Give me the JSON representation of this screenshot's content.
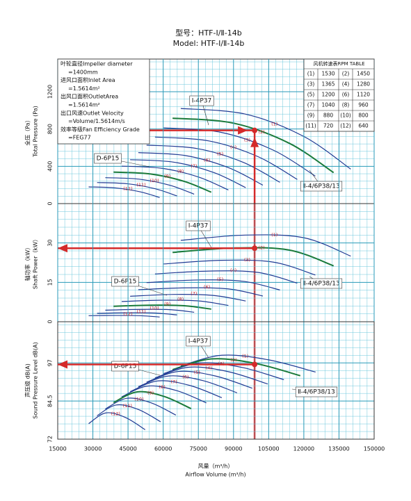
{
  "title": "型号：HTF-Ⅰ/Ⅱ-14b",
  "subtitle": "Model: HTF-Ⅰ/Ⅱ-14b",
  "x_label_cn": "风量（m³/h）",
  "x_label": "Airflow Volume (m³/h)",
  "info_box": [
    "叶轮直径Impeller diameter",
    "=1400mm",
    "进风口面积Inlet Area",
    "=1.5614m²",
    "出风口面积OutletArea",
    "=1.5614m²",
    "出口风速Outlet Velocity",
    "=Volume/1.5614m/s",
    "效率等级Fan Efficiency Grade",
    "=FEG77"
  ],
  "rpm_table": {
    "title": "风机转速表RPM TABLE",
    "rows": [
      [
        "(1)",
        "1530",
        "(2)",
        "1450"
      ],
      [
        "(3)",
        "1365",
        "(4)",
        "1280"
      ],
      [
        "(5)",
        "1200",
        "(6)",
        "1120"
      ],
      [
        "(7)",
        "1040",
        "(8)",
        "960"
      ],
      [
        "(9)",
        "880",
        "(10)",
        "800"
      ],
      [
        "(11)",
        "720",
        "(12)",
        "640"
      ]
    ]
  },
  "chart_data": [
    {
      "type": "line",
      "y_label_cn": "全压（Pa）",
      "y_label": "Total Pressure (Pa)",
      "xlim": [
        15000,
        150000
      ],
      "ylim": [
        0,
        1550
      ],
      "yticks": [
        0,
        400,
        800,
        1200
      ],
      "grid": true,
      "annotations": [
        "Ⅰ-4P37",
        "D-6P15",
        "Ⅱ-4/6P38/13"
      ],
      "operating_point": {
        "x": 99000,
        "y": 785
      },
      "series": [
        {
          "name": "(1)",
          "color": "#1f3a93",
          "x": [
            67500,
            95000,
            120000,
            140000
          ],
          "values": [
            1020,
            960,
            720,
            370
          ]
        },
        {
          "name": "(2)",
          "color": "#1a7a3a",
          "x": [
            64000,
            90100,
            113800,
            132700
          ],
          "values": [
            916,
            862,
            647,
            332
          ]
        },
        {
          "name": "(3)",
          "color": "#1f3a93",
          "x": [
            60200,
            84700,
            107000,
            124900
          ],
          "values": [
            812,
            764,
            573,
            295
          ]
        },
        {
          "name": "(4)",
          "color": "#1f3a93",
          "x": [
            56500,
            79500,
            100400,
            117200
          ],
          "values": [
            714,
            672,
            504,
            259
          ]
        },
        {
          "name": "(5)",
          "color": "#1f3a93",
          "x": [
            52900,
            74500,
            94100,
            109800
          ],
          "values": [
            627,
            590,
            443,
            228
          ]
        },
        {
          "name": "(6)",
          "color": "#1f3a93",
          "x": [
            49400,
            69500,
            87800,
            102500
          ],
          "values": [
            547,
            515,
            386,
            198
          ]
        },
        {
          "name": "(7)",
          "color": "#1f3a93",
          "x": [
            45900,
            64600,
            81600,
            95200
          ],
          "values": [
            471,
            444,
            333,
            171
          ]
        },
        {
          "name": "(8)",
          "color": "#1f3a93",
          "x": [
            42300,
            59600,
            75200,
            87800
          ],
          "values": [
            402,
            378,
            284,
            146
          ]
        },
        {
          "name": "(9)",
          "color": "#1a7a3a",
          "x": [
            38800,
            54600,
            69000,
            80500
          ],
          "values": [
            338,
            318,
            238,
            122
          ]
        },
        {
          "name": "(10)",
          "color": "#1f3a93",
          "x": [
            35300,
            49700,
            62800,
            73200
          ],
          "values": [
            278,
            262,
            197,
            101
          ]
        },
        {
          "name": "(11)",
          "color": "#1f3a93",
          "x": [
            31800,
            44700,
            56500,
            65900
          ],
          "values": [
            226,
            213,
            160,
            82
          ]
        },
        {
          "name": "(12)",
          "color": "#1f3a93",
          "x": [
            28200,
            39700,
            50200,
            58500
          ],
          "values": [
            179,
            168,
            126,
            65
          ]
        }
      ]
    },
    {
      "type": "line",
      "y_label_cn": "轴功率（kW）",
      "y_label": "Shaft Power（kW）",
      "xlim": [
        15000,
        150000
      ],
      "ylim": [
        0,
        45
      ],
      "yticks": [
        0,
        15,
        30
      ],
      "grid": true,
      "annotations": [
        "Ⅰ-4P37",
        "D-6P15",
        "Ⅱ-4/6P38/13"
      ],
      "operating_point": {
        "x": 99000,
        "y": 28
      },
      "series": [
        {
          "name": "(1)",
          "color": "#1f3a93",
          "x": [
            67500,
            95000,
            120000,
            140000
          ],
          "values": [
            31,
            33,
            32,
            25
          ]
        },
        {
          "name": "(2)",
          "color": "#1a7a3a",
          "x": [
            64000,
            90100,
            113800,
            132700
          ],
          "values": [
            26.4,
            28.1,
            27.3,
            21.3
          ]
        },
        {
          "name": "(3)",
          "color": "#1f3a93",
          "x": [
            60200,
            84700,
            107000,
            124900
          ],
          "values": [
            22.0,
            23.4,
            22.7,
            17.8
          ]
        },
        {
          "name": "(4)",
          "color": "#1f3a93",
          "x": [
            56500,
            79500,
            100400,
            117200
          ],
          "values": [
            18.2,
            19.3,
            18.8,
            14.7
          ]
        },
        {
          "name": "(5)",
          "color": "#1f3a93",
          "x": [
            52900,
            74500,
            94100,
            109800
          ],
          "values": [
            14.9,
            15.9,
            15.4,
            12.1
          ]
        },
        {
          "name": "(6)",
          "color": "#1f3a93",
          "x": [
            49400,
            69500,
            87800,
            102500
          ],
          "values": [
            12.2,
            12.9,
            12.5,
            9.8
          ]
        },
        {
          "name": "(7)",
          "color": "#1f3a93",
          "x": [
            45900,
            64600,
            81600,
            95200
          ],
          "values": [
            9.7,
            10.4,
            10.0,
            7.9
          ]
        },
        {
          "name": "(8)",
          "color": "#1f3a93",
          "x": [
            42300,
            59600,
            75200,
            87800
          ],
          "values": [
            7.7,
            8.2,
            7.9,
            6.2
          ]
        },
        {
          "name": "(9)",
          "color": "#1a7a3a",
          "x": [
            38800,
            54600,
            69000,
            80500
          ],
          "values": [
            5.9,
            6.3,
            6.1,
            4.8
          ]
        },
        {
          "name": "(10)",
          "color": "#1f3a93",
          "x": [
            35300,
            49700,
            62800,
            73200
          ],
          "values": [
            4.4,
            4.7,
            4.6,
            3.6
          ]
        },
        {
          "name": "(11)",
          "color": "#1f3a93",
          "x": [
            31800,
            44700,
            56500,
            65900
          ],
          "values": [
            3.2,
            3.4,
            3.3,
            2.6
          ]
        },
        {
          "name": "(12)",
          "color": "#1f3a93",
          "x": [
            28200,
            39700,
            50200,
            58500
          ],
          "values": [
            2.3,
            2.4,
            2.3,
            1.8
          ]
        }
      ]
    },
    {
      "type": "line",
      "y_label_cn": "声压级 dB(A)",
      "y_label": "Sound Pressure Level dB(A)",
      "xlim": [
        15000,
        150000
      ],
      "ylim": [
        72,
        110.5
      ],
      "yticks": [
        72,
        84.5,
        97
      ],
      "grid": true,
      "xticks": [
        15000,
        30000,
        45000,
        60000,
        75000,
        90000,
        105000,
        120000,
        135000,
        150000
      ],
      "annotations": [
        "Ⅰ-4P37",
        "D-6P15",
        "Ⅱ-4/6P38/13"
      ],
      "operating_point": {
        "x": 99000,
        "y": 96.5
      },
      "series": [
        {
          "name": "(1)",
          "color": "#1f3a93",
          "x": [
            67500,
            85000,
            105000,
            125000
          ],
          "values": [
            96,
            99.5,
            98,
            94
          ]
        },
        {
          "name": "(2)",
          "color": "#1a7a3a",
          "x": [
            64000,
            80600,
            99500,
            118500
          ],
          "values": [
            94.8,
            98.3,
            96.8,
            92.8
          ]
        },
        {
          "name": "(3)",
          "color": "#1f3a93",
          "x": [
            60200,
            75800,
            93700,
            111500
          ],
          "values": [
            93.5,
            97,
            95.5,
            91.5
          ]
        },
        {
          "name": "(4)",
          "color": "#1f3a93",
          "x": [
            56500,
            71100,
            87900,
            104600
          ],
          "values": [
            92.1,
            95.6,
            94.1,
            90.1
          ]
        },
        {
          "name": "(5)",
          "color": "#1f3a93",
          "x": [
            52900,
            66600,
            82300,
            98000
          ],
          "values": [
            90.7,
            94.2,
            92.7,
            88.7
          ]
        },
        {
          "name": "(6)",
          "color": "#1f3a93",
          "x": [
            49400,
            62200,
            76900,
            91500
          ],
          "values": [
            89.2,
            92.7,
            91.2,
            87.2
          ]
        },
        {
          "name": "(7)",
          "color": "#1f3a93",
          "x": [
            45900,
            57800,
            71400,
            85000
          ],
          "values": [
            87.6,
            91.1,
            89.6,
            85.6
          ]
        },
        {
          "name": "(8)",
          "color": "#1f3a93",
          "x": [
            42300,
            53300,
            65800,
            78400
          ],
          "values": [
            85.9,
            89.4,
            87.9,
            83.9
          ]
        },
        {
          "name": "(9)",
          "color": "#1a7a3a",
          "x": [
            38800,
            48900,
            60400,
            71900
          ],
          "values": [
            84,
            87.5,
            86,
            82
          ]
        },
        {
          "name": "(10)",
          "color": "#1f3a93",
          "x": [
            35300,
            44500,
            54900,
            65400
          ],
          "values": [
            81.9,
            85.4,
            83.9,
            79.9
          ]
        },
        {
          "name": "(11)",
          "color": "#1f3a93",
          "x": [
            31800,
            40000,
            49500,
            58900
          ],
          "values": [
            79.7,
            83.2,
            81.7,
            77.7
          ]
        },
        {
          "name": "(12)",
          "color": "#1f3a93",
          "x": [
            28200,
            35500,
            43900,
            52300
          ],
          "values": [
            77.1,
            80.6,
            79.1,
            75.1
          ]
        }
      ]
    }
  ]
}
